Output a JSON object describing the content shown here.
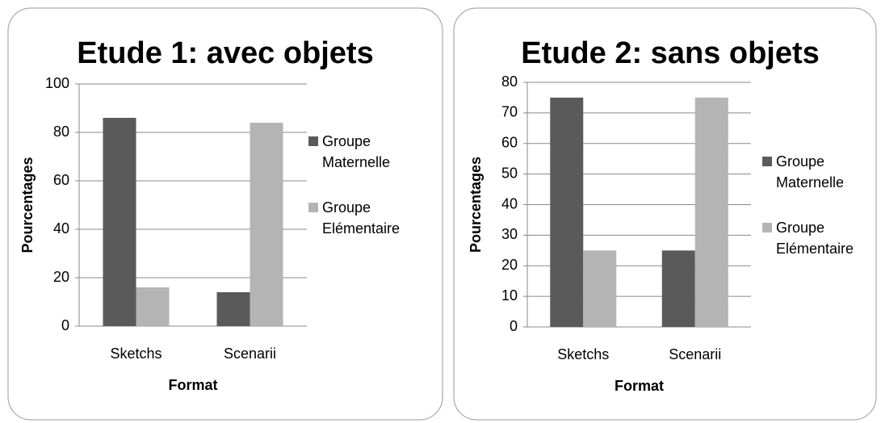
{
  "chart_data": [
    {
      "type": "bar",
      "title": "Etude 1: avec objets",
      "x_label": "Format",
      "y_label": "Pourcentages",
      "categories": [
        "Sketchs",
        "Scenarii"
      ],
      "series": [
        {
          "name": "Groupe Maternelle",
          "color": "#5a5a5a",
          "values": [
            86,
            14
          ]
        },
        {
          "name": "Groupe Elémentaire",
          "color": "#b4b4b4",
          "values": [
            16,
            84
          ]
        }
      ],
      "ylim": [
        0,
        100
      ],
      "yticks": [
        0,
        20,
        40,
        60,
        80,
        100
      ],
      "grid": true,
      "legend": "right"
    },
    {
      "type": "bar",
      "title": "Etude 2: sans objets",
      "x_label": "Format",
      "y_label": "Pourcentages",
      "categories": [
        "Sketchs",
        "Scenarii"
      ],
      "series": [
        {
          "name": "Groupe Maternelle",
          "color": "#5a5a5a",
          "values": [
            75,
            25
          ]
        },
        {
          "name": "Groupe Elémentaire",
          "color": "#b4b4b4",
          "values": [
            25,
            75
          ]
        }
      ],
      "ylim": [
        0,
        80
      ],
      "yticks": [
        0,
        10,
        20,
        30,
        40,
        50,
        60,
        70,
        80
      ],
      "grid": true,
      "legend": "right"
    }
  ]
}
